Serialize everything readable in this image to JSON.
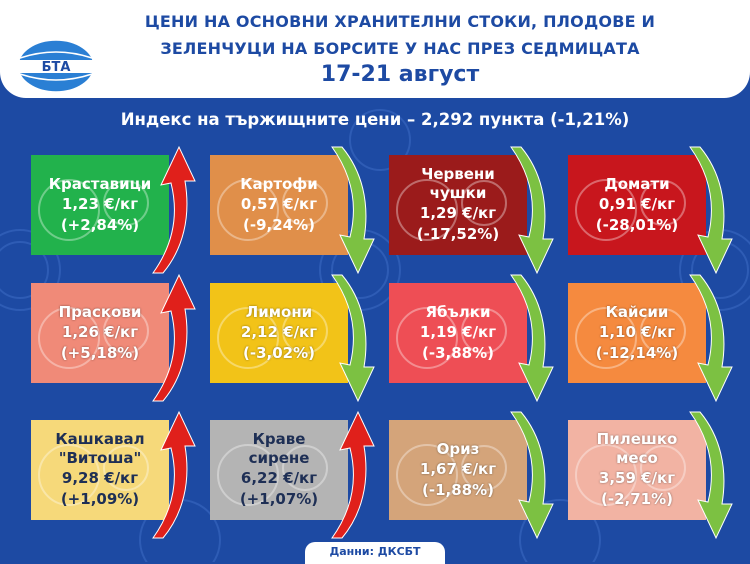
{
  "header": {
    "title_line1": "ЦЕНИ НА ОСНОВНИ ХРАНИТЕЛНИ СТОКИ, ПЛОДОВЕ И",
    "title_line2": "ЗЕЛЕНЧУЦИ НА БОРСИТЕ У НАС ПРЕЗ СЕДМИЦАТА",
    "dates": "17-21 август",
    "logo_text": "БТА"
  },
  "index_text": "Индекс на тържищните цени – 2,292 пункта (-1,21%)",
  "colors": {
    "background": "#1d4aa3",
    "up_arrow": "#e0201b",
    "down_arrow": "#7cc142"
  },
  "items": [
    {
      "name": "Краставици",
      "price": "1,23 €/кг",
      "change": "(+2,84%)",
      "direction": "up",
      "color": "#22b24c",
      "icon": "cucumber-icon"
    },
    {
      "name": "Картофи",
      "price": "0,57 €/кг",
      "change": "(-9,24%)",
      "direction": "down",
      "color": "#e08f4a",
      "icon": "potato-icon"
    },
    {
      "name": "Червени чушки",
      "name_line1": "Червени",
      "name_line2": "чушки",
      "price": "1,29 €/кг",
      "change": "(-17,52%)",
      "direction": "down",
      "color": "#9b1b1b",
      "icon": "pepper-icon"
    },
    {
      "name": "Домати",
      "price": "0,91 €/кг",
      "change": "(-28,01%)",
      "direction": "down",
      "color": "#c8161d",
      "icon": "tomato-icon"
    },
    {
      "name": "Праскови",
      "price": "1,26 €/кг",
      "change": "(+5,18%)",
      "direction": "up",
      "color": "#f08a78",
      "icon": "peach-icon"
    },
    {
      "name": "Лимони",
      "price": "2,12 €/кг",
      "change": "(-3,02%)",
      "direction": "down",
      "color": "#f2c318",
      "icon": "lemon-icon"
    },
    {
      "name": "Ябълки",
      "price": "1,19 €/кг",
      "change": "(-3,88%)",
      "direction": "down",
      "color": "#ee4e55",
      "icon": "apple-icon"
    },
    {
      "name": "Кайсии",
      "price": "1,10 €/кг",
      "change": "(-12,14%)",
      "direction": "down",
      "color": "#f58a3f",
      "icon": "apricot-icon"
    },
    {
      "name": "Кашкавал \"Витоша\"",
      "name_line1": "Кашкавал",
      "name_line2": "\"Витоша\"",
      "price": "9,28 €/кг",
      "change": "(+1,09%)",
      "direction": "up",
      "color": "#f6d97a",
      "icon": "cheese-icon"
    },
    {
      "name": "Краве сирене",
      "name_line1": "Краве",
      "name_line2": "сирене",
      "price": "6,22 €/кг",
      "change": "(+1,07%)",
      "direction": "up",
      "color": "#b4b4b4",
      "icon": "cheese-block-icon"
    },
    {
      "name": "Ориз",
      "price": "1,67 €/кг",
      "change": "(-1,88%)",
      "direction": "down",
      "color": "#d4a47a",
      "icon": "rice-icon"
    },
    {
      "name": "Пилешко месо",
      "name_line1": "Пилешко",
      "name_line2": "месо",
      "price": "3,59 €/кг",
      "change": "(-2,71%)",
      "direction": "down",
      "color": "#f2b3a3",
      "icon": "chicken-icon"
    }
  ],
  "footer": "Данни: ДКСБТ"
}
